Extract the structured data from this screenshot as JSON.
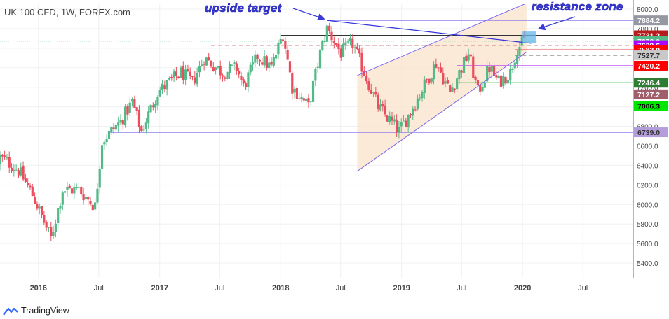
{
  "header": {
    "symbol_title": "UK 100 CFD, 1W, FOREX.com"
  },
  "footer": {
    "brand": "TradingView"
  },
  "annotations": {
    "upside_target": "upside target",
    "resistance_zone": "resistance zone"
  },
  "colors": {
    "up": "#53b987",
    "down": "#eb4d5c",
    "channel": "#7b68ee",
    "channel_fill": "#fbe3cc",
    "trendline": "#3434d9",
    "zone": "#63b5e8",
    "annotation": "#3b3bd6"
  },
  "chart_data": {
    "type": "candlestick",
    "title": "UK 100 CFD, 1W, FOREX.com",
    "ylim": [
      5250,
      8050
    ],
    "y_ticks": [
      5400,
      5600,
      5800,
      6000,
      6200,
      6400,
      6600,
      6800,
      7000,
      7200,
      7400,
      7600,
      7800,
      8000
    ],
    "x_ticks": [
      "2016",
      "Jul",
      "2017",
      "Jul",
      "2018",
      "Jul",
      "2019",
      "Jul",
      "2020",
      "Jul"
    ],
    "current_price": 7672.0,
    "price_labels": [
      {
        "value": 7884.2,
        "bg": "#9598a1",
        "text_color": "#ffffff"
      },
      {
        "value": 7731.2,
        "bg": "#b71c1c",
        "text_color": "#ffffff"
      },
      {
        "value": 7672.0,
        "bg": "#53b987",
        "text_color": "#ffffff"
      },
      {
        "value": 7629.6,
        "bg": "#aa00ff",
        "text_color": "#ffffff"
      },
      {
        "value": 7583.9,
        "bg": "#ff0000",
        "text_color": "#ffffff"
      },
      {
        "value": 7527.7,
        "bg": "#c8c8c8",
        "text_color": "#333333"
      },
      {
        "value": 7420.2,
        "bg": "#ff0000",
        "text_color": "#ffffff"
      },
      {
        "value": 7246.4,
        "bg": "#2e7d32",
        "text_color": "#ffffff"
      },
      {
        "value": 7127.2,
        "bg": "#a05d6a",
        "text_color": "#ffffff"
      },
      {
        "value": 7006.3,
        "bg": "#00e600",
        "text_color": "#000000"
      },
      {
        "value": 6739.0,
        "bg": "#b39ddb",
        "text_color": "#333333"
      }
    ],
    "weekly_close_anchors": [
      [
        "2015-10-05",
        6420
      ],
      [
        "2015-11-02",
        6350
      ],
      [
        "2015-12-14",
        6100
      ],
      [
        "2016-01-18",
        5820
      ],
      [
        "2016-02-08",
        5650
      ],
      [
        "2016-03-14",
        6150
      ],
      [
        "2016-05-02",
        6150
      ],
      [
        "2016-06-20",
        5980
      ],
      [
        "2016-07-11",
        6650
      ],
      [
        "2016-09-05",
        6850
      ],
      [
        "2016-10-10",
        7050
      ],
      [
        "2016-11-07",
        6750
      ],
      [
        "2016-12-26",
        7150
      ],
      [
        "2017-03-06",
        7350
      ],
      [
        "2017-04-10",
        7250
      ],
      [
        "2017-05-15",
        7500
      ],
      [
        "2017-07-10",
        7350
      ],
      [
        "2017-08-21",
        7400
      ],
      [
        "2017-09-11",
        7200
      ],
      [
        "2017-10-23",
        7520
      ],
      [
        "2017-12-04",
        7400
      ],
      [
        "2018-01-08",
        7750
      ],
      [
        "2018-02-05",
        7200
      ],
      [
        "2018-03-26",
        7000
      ],
      [
        "2018-04-30",
        7550
      ],
      [
        "2018-05-21",
        7800
      ],
      [
        "2018-07-02",
        7550
      ],
      [
        "2018-08-06",
        7650
      ],
      [
        "2018-10-22",
        7000
      ],
      [
        "2018-12-24",
        6750
      ],
      [
        "2019-01-28",
        6950
      ],
      [
        "2019-04-15",
        7450
      ],
      [
        "2019-05-27",
        7150
      ],
      [
        "2019-07-22",
        7550
      ],
      [
        "2019-08-19",
        7150
      ],
      [
        "2019-09-23",
        7400
      ],
      [
        "2019-10-21",
        7250
      ],
      [
        "2019-11-25",
        7350
      ],
      [
        "2019-12-16",
        7600
      ],
      [
        "2020-01-06",
        7672
      ]
    ],
    "levels": [
      {
        "value": 7884.2,
        "from": "2018-05-21",
        "color": "#7b68ee",
        "dash": "solid"
      },
      {
        "value": 7731.2,
        "from": "2018-01-01",
        "color": "#333333",
        "dash": "solid"
      },
      {
        "value": 7672.0,
        "from": "2015-09-07",
        "color": "#53b987",
        "dash": "dotted"
      },
      {
        "value": 7629.6,
        "from": "2017-06-05",
        "color": "#8b1a1a",
        "dash": "dashed"
      },
      {
        "value": 7583.9,
        "from": "2019-12-09",
        "color": "#e00000",
        "dash": "solid"
      },
      {
        "value": 7527.7,
        "from": "2019-12-09",
        "color": "#333333",
        "dash": "dashed"
      },
      {
        "value": 7420.2,
        "from": "2019-06-17",
        "color": "#aa00ff",
        "dash": "solid"
      },
      {
        "value": 7246.4,
        "from": "2019-06-17",
        "color": "#00aa00",
        "dash": "solid"
      },
      {
        "value": 6739.0,
        "from": "2016-08-01",
        "color": "#7b68ee",
        "dash": "solid"
      }
    ],
    "channel": {
      "upper": [
        [
          "2018-08-20",
          7320
        ],
        [
          "2020-01-13",
          8060
        ]
      ],
      "lower": [
        [
          "2018-08-20",
          6340
        ],
        [
          "2020-01-13",
          7560
        ]
      ]
    },
    "trendline": [
      [
        "2018-05-21",
        7884
      ],
      [
        "2020-01-27",
        7650
      ]
    ],
    "resistance_zone": {
      "from": "2020-01-01",
      "to": "2020-02-10",
      "low": 7650,
      "high": 7770
    },
    "arrows": [
      {
        "label": "upside target",
        "to": [
          "2018-05-21",
          7884
        ]
      },
      {
        "label": "resistance zone",
        "to": [
          "2020-02-10",
          7770
        ]
      }
    ]
  }
}
